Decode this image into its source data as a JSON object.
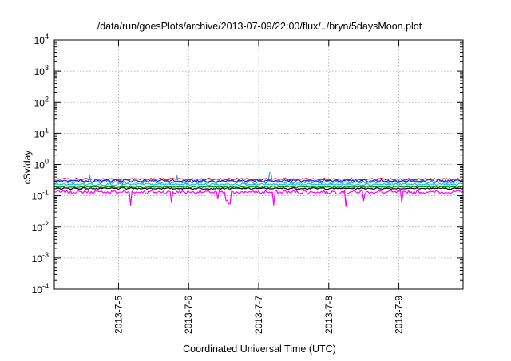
{
  "chart_data": {
    "type": "line",
    "title": "/data/run/goesPlots/archive/2013-07-09/22:00/flux/../bryn/5daysMoon.plot",
    "xlabel": "Coordinated Universal Time (UTC)",
    "ylabel": "cSv/day",
    "y_scale": "log",
    "ylim": [
      0.0001,
      10000
    ],
    "xlim": [
      "2013-07-04 02:00",
      "2013-07-09 22:00"
    ],
    "grid": true,
    "x_ticks": [
      "2013-7-5",
      "2013-7-6",
      "2013-7-7",
      "2013-7-8",
      "2013-7-9"
    ],
    "y_ticks": [
      {
        "base": "10",
        "exp": "-4"
      },
      {
        "base": "10",
        "exp": "-3"
      },
      {
        "base": "10",
        "exp": "-2"
      },
      {
        "base": "10",
        "exp": "-1"
      },
      {
        "base": "10",
        "exp": "0"
      },
      {
        "base": "10",
        "exp": "1"
      },
      {
        "base": "10",
        "exp": "2"
      },
      {
        "base": "10",
        "exp": "3"
      },
      {
        "base": "10",
        "exp": "4"
      }
    ],
    "series": [
      {
        "color": "#ff00ff",
        "baseline": 0.13,
        "noise": 0.12,
        "spikes": [
          {
            "x": "2013-07-05 04:00",
            "value": 0.05
          },
          {
            "x": "2013-07-05 18:00",
            "value": 0.06
          },
          {
            "x": "2013-07-06 10:00",
            "value": 0.08
          },
          {
            "x": "2013-07-06 13:00",
            "value": 0.07
          },
          {
            "x": "2013-07-06 14:00",
            "value": 0.055
          },
          {
            "x": "2013-07-07 05:00",
            "value": 0.05
          },
          {
            "x": "2013-07-08 06:00",
            "value": 0.045
          },
          {
            "x": "2013-07-08 12:00",
            "value": 0.07
          },
          {
            "x": "2013-07-09 01:00",
            "value": 0.06
          }
        ]
      },
      {
        "color": "#000000",
        "baseline": 0.17,
        "noise": 0.05,
        "spikes": []
      },
      {
        "color": "#008800",
        "baseline": 0.19,
        "noise": 0.05,
        "spikes": []
      },
      {
        "color": "#00cccc",
        "baseline": 0.23,
        "noise": 0.06,
        "spikes": []
      },
      {
        "color": "#3399ff",
        "baseline": 0.27,
        "noise": 0.1,
        "spikes": [
          {
            "x": "2013-07-04 14:00",
            "value": 0.45
          },
          {
            "x": "2013-07-05 20:00",
            "value": 0.45
          },
          {
            "x": "2013-07-07 04:00",
            "value": 0.55
          }
        ]
      },
      {
        "color": "#2222cc",
        "baseline": 0.3,
        "noise": 0.08,
        "spikes": []
      },
      {
        "color": "#ff0000",
        "baseline": 0.34,
        "noise": 0.06,
        "spikes": []
      }
    ]
  }
}
